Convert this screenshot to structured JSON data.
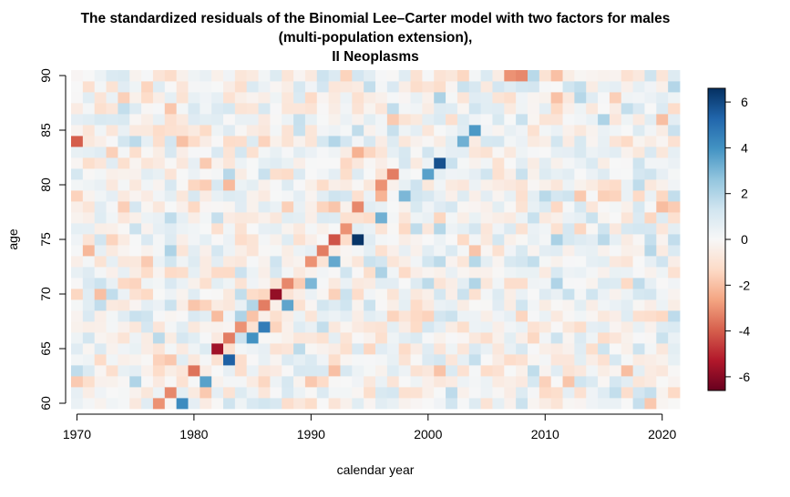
{
  "chart_data": {
    "type": "heatmap",
    "title_lines": [
      "The standardized residuals of the Binomial Lee–Carter model with two factors for males",
      "(multi-population extension),",
      "II Neoplasms"
    ],
    "xlabel": "calendar year",
    "ylabel": "age",
    "x_range": [
      1970,
      2021
    ],
    "y_range": [
      60,
      90
    ],
    "x_ticks": [
      "1970",
      "1980",
      "1990",
      "2000",
      "2010",
      "2020"
    ],
    "y_ticks": [
      "60",
      "65",
      "70",
      "75",
      "80",
      "85",
      "90"
    ],
    "colorbar_range": [
      -6.6,
      6.6
    ],
    "colorbar_ticks": [
      "6",
      "4",
      "2",
      "0",
      "-2",
      "-4",
      "-6"
    ],
    "colorscale": [
      "#67001f",
      "#b2182b",
      "#d6604d",
      "#f4a582",
      "#fddbc7",
      "#f7f7f7",
      "#d1e5f0",
      "#92c5de",
      "#4393c3",
      "#2166ac",
      "#053061"
    ],
    "grid": false,
    "highlights": [
      {
        "description": "positive cohort diagonal",
        "points": [
          [
            1979,
            60
          ],
          [
            1981,
            62
          ],
          [
            1983,
            64
          ],
          [
            1985,
            66
          ],
          [
            1986,
            67
          ],
          [
            1988,
            69
          ],
          [
            1990,
            71
          ],
          [
            1992,
            73
          ],
          [
            1994,
            75
          ],
          [
            1996,
            77
          ],
          [
            1998,
            79
          ],
          [
            2000,
            81
          ],
          [
            2001,
            82
          ],
          [
            2003,
            84
          ],
          [
            2004,
            85
          ]
        ],
        "values": [
          4.2,
          3.6,
          5.4,
          4.0,
          4.6,
          3.5,
          3.0,
          3.4,
          6.5,
          3.2,
          3.0,
          3.6,
          5.8,
          3.2,
          3.8
        ]
      },
      {
        "description": "negative cohort diagonal",
        "points": [
          [
            1977,
            60
          ],
          [
            1978,
            61
          ],
          [
            1980,
            63
          ],
          [
            1982,
            65
          ],
          [
            1983,
            66
          ],
          [
            1984,
            67
          ],
          [
            1986,
            69
          ],
          [
            1987,
            70
          ],
          [
            1988,
            71
          ],
          [
            1990,
            73
          ],
          [
            1991,
            74
          ],
          [
            1992,
            75
          ],
          [
            1993,
            76
          ],
          [
            1994,
            78
          ],
          [
            1996,
            80
          ],
          [
            1997,
            81
          ]
        ],
        "values": [
          -3.0,
          -3.2,
          -3.6,
          -5.6,
          -3.4,
          -3.0,
          -3.4,
          -5.8,
          -3.2,
          -3.0,
          -3.4,
          -4.2,
          -3.0,
          -3.2,
          -3.0,
          -3.4
        ]
      },
      {
        "description": "isolated strong cells",
        "points": [
          [
            1970,
            84
          ],
          [
            2007,
            90
          ],
          [
            2008,
            90
          ]
        ],
        "values": [
          -4.0,
          -3.0,
          -3.2
        ]
      }
    ]
  }
}
